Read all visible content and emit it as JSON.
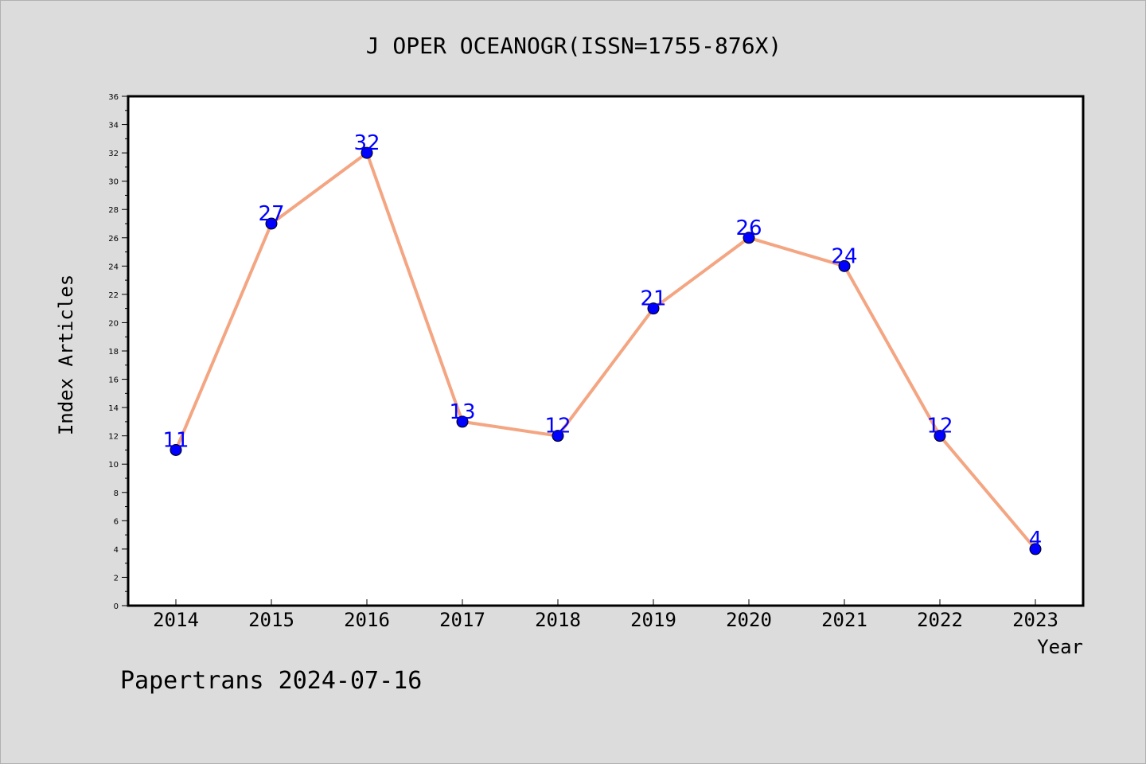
{
  "chart_data": {
    "type": "line",
    "title": "J OPER OCEANOGR(ISSN=1755-876X)",
    "xlabel": "Year",
    "ylabel": "Index Articles",
    "categories": [
      "2014",
      "2015",
      "2016",
      "2017",
      "2018",
      "2019",
      "2020",
      "2021",
      "2022",
      "2023"
    ],
    "series": [
      {
        "values": [
          11,
          27,
          32,
          13,
          12,
          21,
          26,
          24,
          12,
          4
        ]
      }
    ],
    "ylim": [
      0,
      36
    ],
    "ytick_step": 2,
    "grid": false,
    "line_color": "#f4a582",
    "marker_color": "#0000ff",
    "label_color": "#0000ff"
  },
  "footer": "Papertrans 2024-07-16"
}
